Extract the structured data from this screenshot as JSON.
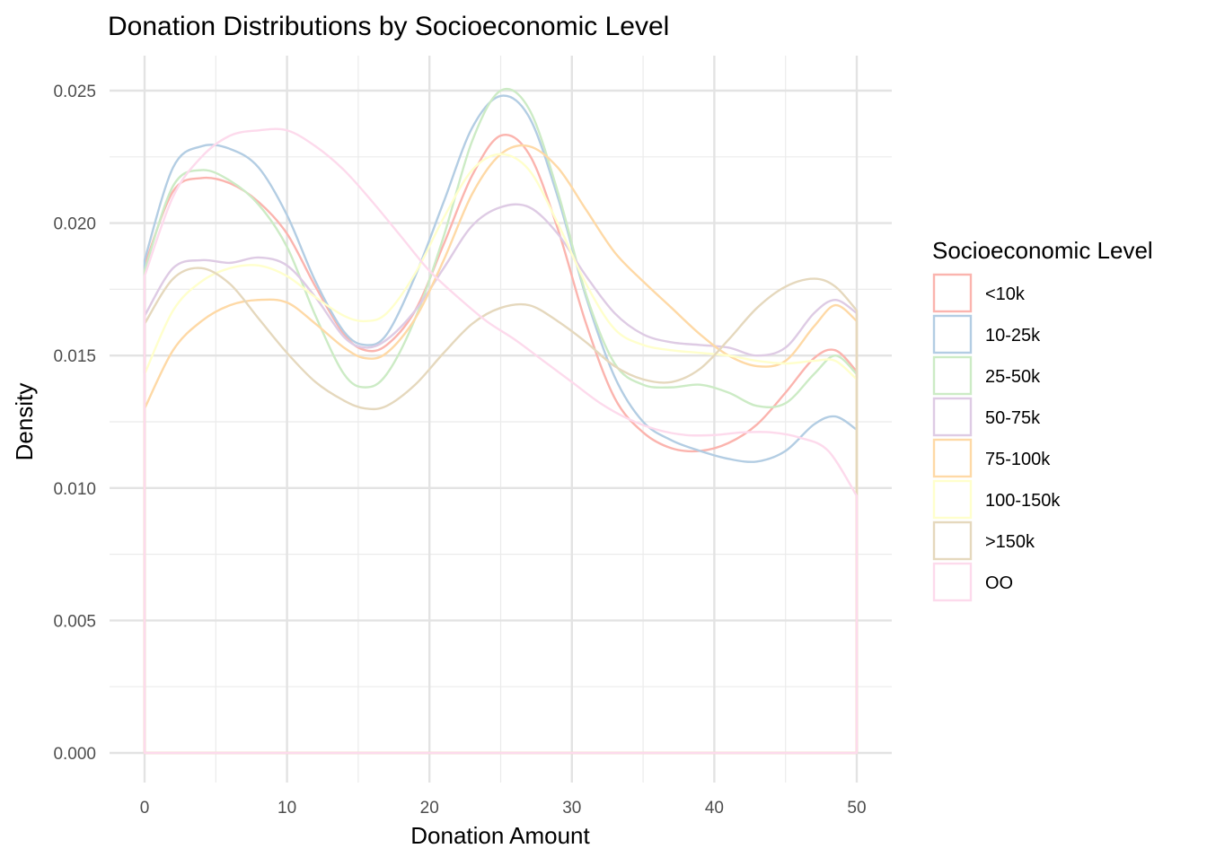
{
  "chart_data": {
    "type": "line",
    "title": "Donation Distributions by Socioeconomic Level",
    "xlabel": "Donation Amount",
    "ylabel": "Density",
    "xlim": [
      0,
      50
    ],
    "ylim": [
      0,
      0.025
    ],
    "xticks": [
      0,
      10,
      20,
      30,
      40,
      50
    ],
    "xtick_labels": [
      "0",
      "10",
      "20",
      "30",
      "40",
      "50"
    ],
    "yticks": [
      0,
      0.005,
      0.01,
      0.015,
      0.02,
      0.025
    ],
    "ytick_labels": [
      "0.000",
      "0.005",
      "0.010",
      "0.015",
      "0.020",
      "0.025"
    ],
    "grid": true,
    "legend_title": "Socioeconomic Level",
    "legend_position": "right",
    "series": [
      {
        "name": "<10k",
        "color": "#FBB4AE",
        "points": [
          [
            0,
            0.0184
          ],
          [
            2,
            0.0212
          ],
          [
            4,
            0.0217
          ],
          [
            6,
            0.0215
          ],
          [
            8,
            0.0208
          ],
          [
            10,
            0.0196
          ],
          [
            12,
            0.0176
          ],
          [
            14,
            0.0158
          ],
          [
            15.5,
            0.0152
          ],
          [
            17,
            0.0154
          ],
          [
            19,
            0.0167
          ],
          [
            21,
            0.0192
          ],
          [
            23,
            0.0218
          ],
          [
            25,
            0.0233
          ],
          [
            27,
            0.0226
          ],
          [
            29,
            0.0198
          ],
          [
            31,
            0.0162
          ],
          [
            33,
            0.0134
          ],
          [
            35,
            0.0121
          ],
          [
            37,
            0.0115
          ],
          [
            39,
            0.0114
          ],
          [
            41,
            0.0117
          ],
          [
            43,
            0.0124
          ],
          [
            45,
            0.0136
          ],
          [
            47,
            0.0149
          ],
          [
            48.5,
            0.0152
          ],
          [
            50,
            0.0144
          ]
        ]
      },
      {
        "name": "10-25k",
        "color": "#B3CDE3",
        "points": [
          [
            0,
            0.0186
          ],
          [
            2,
            0.0221
          ],
          [
            4,
            0.0229
          ],
          [
            6,
            0.0228
          ],
          [
            8,
            0.0221
          ],
          [
            10,
            0.0203
          ],
          [
            12,
            0.0178
          ],
          [
            14,
            0.0159
          ],
          [
            15.5,
            0.0154
          ],
          [
            17,
            0.0158
          ],
          [
            19,
            0.018
          ],
          [
            21,
            0.0208
          ],
          [
            23,
            0.0236
          ],
          [
            25,
            0.0248
          ],
          [
            27,
            0.024
          ],
          [
            29,
            0.021
          ],
          [
            31,
            0.0172
          ],
          [
            33,
            0.0142
          ],
          [
            35,
            0.0125
          ],
          [
            37,
            0.0118
          ],
          [
            39,
            0.0114
          ],
          [
            41,
            0.0111
          ],
          [
            43,
            0.011
          ],
          [
            45,
            0.0114
          ],
          [
            47,
            0.0124
          ],
          [
            48.5,
            0.0127
          ],
          [
            50,
            0.0122
          ]
        ]
      },
      {
        "name": "25-50k",
        "color": "#CCEBC5",
        "points": [
          [
            0,
            0.0182
          ],
          [
            2,
            0.0214
          ],
          [
            4,
            0.022
          ],
          [
            6,
            0.0216
          ],
          [
            8,
            0.0207
          ],
          [
            10,
            0.0191
          ],
          [
            12,
            0.0165
          ],
          [
            14,
            0.0143
          ],
          [
            15.5,
            0.0138
          ],
          [
            17,
            0.0143
          ],
          [
            19,
            0.0164
          ],
          [
            21,
            0.0195
          ],
          [
            23,
            0.0231
          ],
          [
            25,
            0.025
          ],
          [
            27,
            0.0243
          ],
          [
            29,
            0.0212
          ],
          [
            31,
            0.0173
          ],
          [
            33,
            0.0147
          ],
          [
            35,
            0.0139
          ],
          [
            37,
            0.0138
          ],
          [
            39,
            0.0139
          ],
          [
            41,
            0.0136
          ],
          [
            43,
            0.0131
          ],
          [
            45,
            0.0132
          ],
          [
            47,
            0.0143
          ],
          [
            48.5,
            0.015
          ],
          [
            50,
            0.0143
          ]
        ]
      },
      {
        "name": "50-75k",
        "color": "#DECBE4",
        "points": [
          [
            0,
            0.0165
          ],
          [
            2,
            0.0183
          ],
          [
            4,
            0.0186
          ],
          [
            6,
            0.0185
          ],
          [
            8,
            0.0187
          ],
          [
            10,
            0.0184
          ],
          [
            12,
            0.0172
          ],
          [
            14,
            0.0157
          ],
          [
            15.5,
            0.0153
          ],
          [
            17,
            0.0156
          ],
          [
            19,
            0.0167
          ],
          [
            21,
            0.0183
          ],
          [
            23,
            0.0199
          ],
          [
            25,
            0.0206
          ],
          [
            27,
            0.0206
          ],
          [
            29,
            0.0196
          ],
          [
            31,
            0.018
          ],
          [
            33,
            0.0166
          ],
          [
            35,
            0.0158
          ],
          [
            37,
            0.0155
          ],
          [
            39,
            0.0154
          ],
          [
            41,
            0.0153
          ],
          [
            43,
            0.015
          ],
          [
            45,
            0.0153
          ],
          [
            47,
            0.0166
          ],
          [
            48.5,
            0.0171
          ],
          [
            50,
            0.0166
          ]
        ]
      },
      {
        "name": "75-100k",
        "color": "#FED9A6",
        "points": [
          [
            0,
            0.013
          ],
          [
            2,
            0.0152
          ],
          [
            4,
            0.0163
          ],
          [
            6,
            0.0169
          ],
          [
            8,
            0.0171
          ],
          [
            10,
            0.017
          ],
          [
            12,
            0.0162
          ],
          [
            14,
            0.0153
          ],
          [
            15.5,
            0.0149
          ],
          [
            17,
            0.0151
          ],
          [
            19,
            0.0164
          ],
          [
            21,
            0.0186
          ],
          [
            23,
            0.0211
          ],
          [
            25,
            0.0226
          ],
          [
            27,
            0.0229
          ],
          [
            29,
            0.0221
          ],
          [
            31,
            0.0205
          ],
          [
            33,
            0.0189
          ],
          [
            35,
            0.0178
          ],
          [
            37,
            0.0168
          ],
          [
            39,
            0.0158
          ],
          [
            41,
            0.015
          ],
          [
            43,
            0.0146
          ],
          [
            45,
            0.0148
          ],
          [
            47,
            0.0161
          ],
          [
            48.5,
            0.0169
          ],
          [
            50,
            0.0163
          ]
        ]
      },
      {
        "name": "100-150k",
        "color": "#FFFFCC",
        "points": [
          [
            0,
            0.0143
          ],
          [
            2,
            0.0167
          ],
          [
            4,
            0.0178
          ],
          [
            6,
            0.0183
          ],
          [
            8,
            0.0184
          ],
          [
            10,
            0.018
          ],
          [
            12,
            0.0172
          ],
          [
            14,
            0.0165
          ],
          [
            15.5,
            0.0163
          ],
          [
            17,
            0.0166
          ],
          [
            19,
            0.0181
          ],
          [
            21,
            0.0202
          ],
          [
            23,
            0.022
          ],
          [
            25,
            0.0226
          ],
          [
            27,
            0.022
          ],
          [
            29,
            0.02
          ],
          [
            31,
            0.0177
          ],
          [
            33,
            0.016
          ],
          [
            35,
            0.0154
          ],
          [
            37,
            0.0152
          ],
          [
            39,
            0.0151
          ],
          [
            41,
            0.015
          ],
          [
            43,
            0.0148
          ],
          [
            45,
            0.0147
          ],
          [
            47,
            0.0148
          ],
          [
            48.5,
            0.0148
          ],
          [
            50,
            0.0141
          ]
        ]
      },
      {
        "name": ">150k",
        "color": "#E5D8BD",
        "points": [
          [
            0,
            0.0162
          ],
          [
            2,
            0.0179
          ],
          [
            4,
            0.0183
          ],
          [
            6,
            0.0177
          ],
          [
            8,
            0.0164
          ],
          [
            10,
            0.0151
          ],
          [
            12,
            0.014
          ],
          [
            14,
            0.0133
          ],
          [
            15.5,
            0.013
          ],
          [
            17,
            0.0131
          ],
          [
            19,
            0.0139
          ],
          [
            21,
            0.0151
          ],
          [
            23,
            0.0162
          ],
          [
            25,
            0.0168
          ],
          [
            27,
            0.0169
          ],
          [
            29,
            0.0163
          ],
          [
            31,
            0.0155
          ],
          [
            33,
            0.0146
          ],
          [
            35,
            0.0141
          ],
          [
            37,
            0.014
          ],
          [
            39,
            0.0145
          ],
          [
            41,
            0.0156
          ],
          [
            43,
            0.0168
          ],
          [
            45,
            0.0176
          ],
          [
            47,
            0.0179
          ],
          [
            48.5,
            0.0176
          ],
          [
            50,
            0.0167
          ]
        ]
      },
      {
        "name": "OO",
        "color": "#FDDAEC",
        "points": [
          [
            0,
            0.018
          ],
          [
            2,
            0.021
          ],
          [
            4,
            0.0225
          ],
          [
            6,
            0.0233
          ],
          [
            8,
            0.0235
          ],
          [
            10,
            0.0235
          ],
          [
            12,
            0.0229
          ],
          [
            14,
            0.022
          ],
          [
            16,
            0.0208
          ],
          [
            18,
            0.0195
          ],
          [
            20,
            0.0182
          ],
          [
            22,
            0.0172
          ],
          [
            24,
            0.0163
          ],
          [
            26,
            0.0156
          ],
          [
            28,
            0.0148
          ],
          [
            30,
            0.014
          ],
          [
            32,
            0.0132
          ],
          [
            34,
            0.0126
          ],
          [
            36,
            0.0122
          ],
          [
            38,
            0.012
          ],
          [
            40,
            0.012
          ],
          [
            42,
            0.0121
          ],
          [
            44,
            0.0121
          ],
          [
            46,
            0.0119
          ],
          [
            48,
            0.0114
          ],
          [
            50,
            0.0097
          ]
        ]
      }
    ]
  }
}
